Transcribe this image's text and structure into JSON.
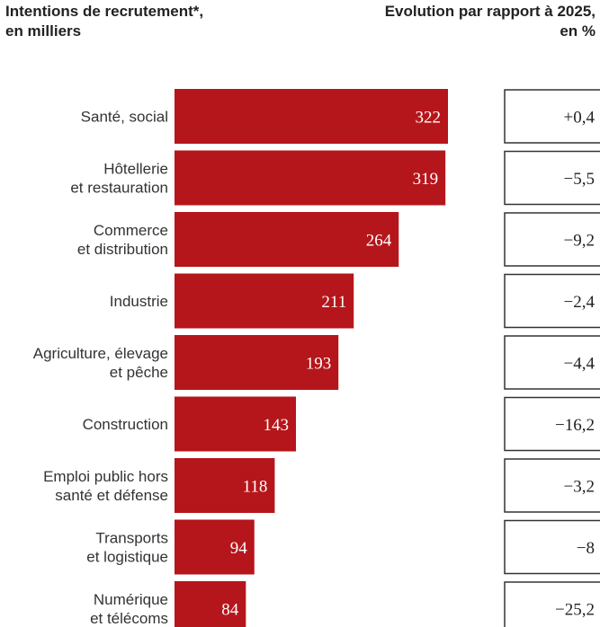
{
  "header": {
    "left_line1": "Intentions de recrutement*,",
    "left_line2": "en milliers",
    "right_line1": "Evolution par rapport à 2025,",
    "right_line2": "en %"
  },
  "colors": {
    "bar": "#b5161b",
    "box_border": "#333333"
  },
  "chart_data": {
    "type": "bar",
    "orientation": "horizontal",
    "categories": [
      [
        "Santé, social"
      ],
      [
        "Hôtellerie",
        "et restauration"
      ],
      [
        "Commerce",
        "et distribution"
      ],
      [
        "Industrie"
      ],
      [
        "Agriculture, élevage",
        "et pêche"
      ],
      [
        "Construction"
      ],
      [
        "Emploi public hors",
        "santé et défense"
      ],
      [
        "Transports",
        "et logistique"
      ],
      [
        "Numérique",
        "et télécoms"
      ]
    ],
    "values": [
      322,
      319,
      264,
      211,
      193,
      143,
      118,
      94,
      84
    ],
    "evolution": [
      "+0,4",
      "−5,5",
      "−9,2",
      "−2,4",
      "−4,4",
      "−16,2",
      "−3,2",
      "−8",
      "−25,2"
    ]
  }
}
